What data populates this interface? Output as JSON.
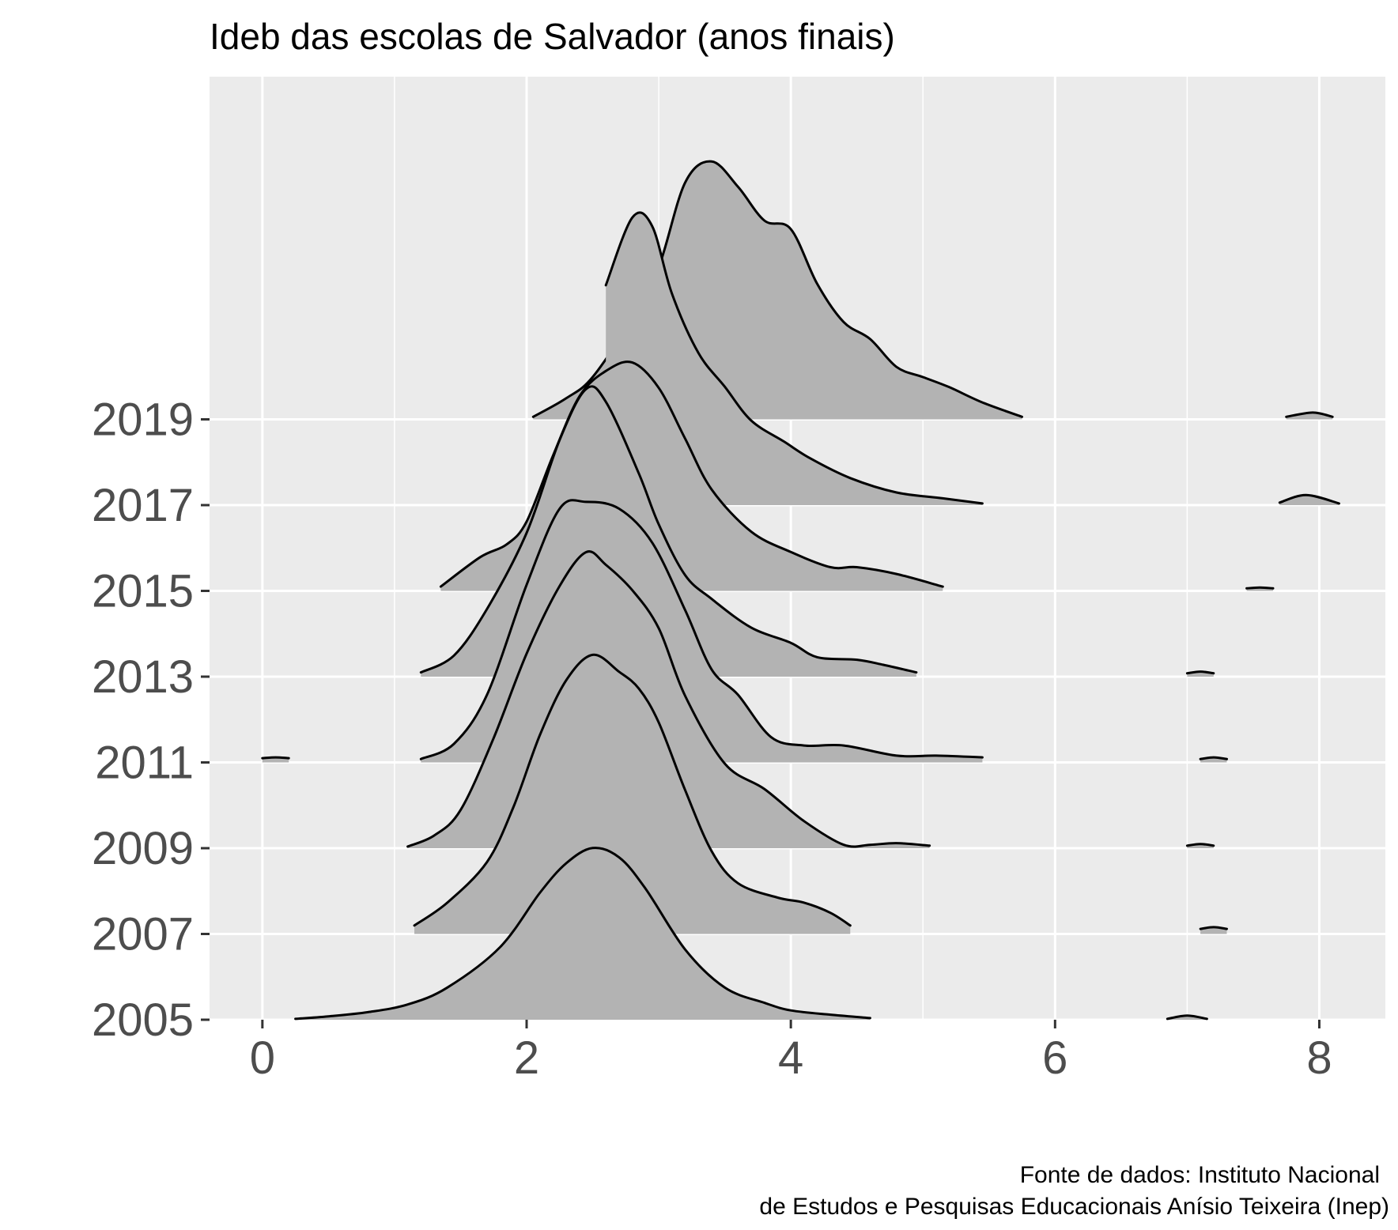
{
  "chart_data": {
    "type": "ridgeline",
    "title": "Ideb das escolas de Salvador (anos finais)",
    "xlabel": "",
    "ylabel": "",
    "xlim": [
      -0.4,
      8.5
    ],
    "x_ticks": [
      "0",
      "2",
      "4",
      "6",
      "8"
    ],
    "categories": [
      "2005",
      "2007",
      "2009",
      "2011",
      "2013",
      "2015",
      "2017",
      "2019"
    ],
    "panel_background": "#ebebeb",
    "gridline_color": "#ffffff",
    "fill_color": "#b3b3b3",
    "line_color": "#000000",
    "grid": true,
    "series": [
      {
        "name": "2005",
        "main": [
          [
            0.25,
            0.01
          ],
          [
            0.5,
            0.04
          ],
          [
            0.8,
            0.09
          ],
          [
            1.1,
            0.18
          ],
          [
            1.4,
            0.38
          ],
          [
            1.8,
            0.86
          ],
          [
            2.1,
            1.5
          ],
          [
            2.3,
            1.85
          ],
          [
            2.5,
            2.03
          ],
          [
            2.7,
            1.92
          ],
          [
            2.9,
            1.55
          ],
          [
            3.2,
            0.83
          ],
          [
            3.5,
            0.38
          ],
          [
            3.8,
            0.2
          ],
          [
            4.0,
            0.11
          ],
          [
            4.3,
            0.06
          ],
          [
            4.6,
            0.02
          ]
        ],
        "outliers": [
          [
            [
              6.85,
              0.01
            ],
            [
              7.0,
              0.05
            ],
            [
              7.15,
              0.01
            ]
          ]
        ]
      },
      {
        "name": "2007",
        "main": [
          [
            1.15,
            0.1
          ],
          [
            1.4,
            0.37
          ],
          [
            1.7,
            0.85
          ],
          [
            1.9,
            1.5
          ],
          [
            2.1,
            2.35
          ],
          [
            2.3,
            3.0
          ],
          [
            2.5,
            3.3
          ],
          [
            2.7,
            3.1
          ],
          [
            2.85,
            2.9
          ],
          [
            3.0,
            2.5
          ],
          [
            3.2,
            1.7
          ],
          [
            3.4,
            0.98
          ],
          [
            3.6,
            0.6
          ],
          [
            3.9,
            0.43
          ],
          [
            4.1,
            0.37
          ],
          [
            4.3,
            0.25
          ],
          [
            4.45,
            0.1
          ]
        ],
        "outliers": [
          [
            [
              7.1,
              0.06
            ],
            [
              7.2,
              0.08
            ],
            [
              7.3,
              0.06
            ]
          ]
        ]
      },
      {
        "name": "2009",
        "main": [
          [
            1.1,
            0.02
          ],
          [
            1.3,
            0.15
          ],
          [
            1.5,
            0.45
          ],
          [
            1.75,
            1.3
          ],
          [
            2.0,
            2.3
          ],
          [
            2.25,
            3.1
          ],
          [
            2.45,
            3.5
          ],
          [
            2.6,
            3.35
          ],
          [
            2.8,
            3.05
          ],
          [
            3.0,
            2.6
          ],
          [
            3.2,
            1.8
          ],
          [
            3.5,
            1.0
          ],
          [
            3.8,
            0.7
          ],
          [
            4.1,
            0.32
          ],
          [
            4.4,
            0.04
          ],
          [
            4.6,
            0.04
          ],
          [
            4.8,
            0.06
          ],
          [
            5.05,
            0.03
          ]
        ],
        "outliers": [
          [
            [
              7.0,
              0.03
            ],
            [
              7.1,
              0.05
            ],
            [
              7.2,
              0.03
            ]
          ]
        ]
      },
      {
        "name": "2011",
        "main": [
          [
            1.2,
            0.04
          ],
          [
            1.45,
            0.22
          ],
          [
            1.7,
            0.8
          ],
          [
            2.0,
            2.1
          ],
          [
            2.25,
            3.0
          ],
          [
            2.45,
            3.08
          ],
          [
            2.7,
            3.0
          ],
          [
            2.95,
            2.6
          ],
          [
            3.2,
            1.8
          ],
          [
            3.4,
            1.1
          ],
          [
            3.6,
            0.8
          ],
          [
            3.85,
            0.3
          ],
          [
            4.1,
            0.2
          ],
          [
            4.4,
            0.2
          ],
          [
            4.8,
            0.08
          ],
          [
            5.1,
            0.08
          ],
          [
            5.45,
            0.06
          ]
        ],
        "outliers": [
          [
            [
              0.0,
              0.05
            ],
            [
              0.1,
              0.06
            ],
            [
              0.2,
              0.05
            ]
          ],
          [
            [
              7.1,
              0.04
            ],
            [
              7.2,
              0.06
            ],
            [
              7.3,
              0.04
            ]
          ]
        ]
      },
      {
        "name": "2013",
        "main": [
          [
            1.2,
            0.05
          ],
          [
            1.45,
            0.25
          ],
          [
            1.7,
            0.8
          ],
          [
            2.0,
            1.7
          ],
          [
            2.25,
            2.8
          ],
          [
            2.45,
            3.4
          ],
          [
            2.6,
            3.25
          ],
          [
            2.85,
            2.4
          ],
          [
            3.0,
            1.8
          ],
          [
            3.2,
            1.2
          ],
          [
            3.4,
            0.92
          ],
          [
            3.7,
            0.58
          ],
          [
            4.0,
            0.4
          ],
          [
            4.2,
            0.23
          ],
          [
            4.5,
            0.2
          ],
          [
            4.7,
            0.14
          ],
          [
            4.95,
            0.05
          ]
        ],
        "outliers": [
          [
            [
              7.0,
              0.04
            ],
            [
              7.1,
              0.06
            ],
            [
              7.2,
              0.04
            ]
          ]
        ]
      },
      {
        "name": "2015",
        "main": [
          [
            1.35,
            0.05
          ],
          [
            1.65,
            0.4
          ],
          [
            1.85,
            0.55
          ],
          [
            2.0,
            0.82
          ],
          [
            2.2,
            1.6
          ],
          [
            2.4,
            2.3
          ],
          [
            2.6,
            2.6
          ],
          [
            2.8,
            2.7
          ],
          [
            3.0,
            2.4
          ],
          [
            3.2,
            1.8
          ],
          [
            3.4,
            1.2
          ],
          [
            3.7,
            0.7
          ],
          [
            4.0,
            0.46
          ],
          [
            4.3,
            0.28
          ],
          [
            4.5,
            0.28
          ],
          [
            4.8,
            0.2
          ],
          [
            5.15,
            0.05
          ]
        ],
        "outliers": [
          [
            [
              7.45,
              0.03
            ],
            [
              7.55,
              0.04
            ],
            [
              7.65,
              0.03
            ]
          ]
        ]
      },
      {
        "name": "2017",
        "main": [
          [
            2.6,
            2.6
          ],
          [
            2.8,
            3.4
          ],
          [
            2.95,
            3.3
          ],
          [
            3.1,
            2.5
          ],
          [
            3.3,
            1.8
          ],
          [
            3.5,
            1.4
          ],
          [
            3.7,
            1.0
          ],
          [
            3.95,
            0.75
          ],
          [
            4.15,
            0.55
          ],
          [
            4.45,
            0.32
          ],
          [
            4.8,
            0.15
          ],
          [
            5.15,
            0.08
          ],
          [
            5.45,
            0.02
          ]
        ],
        "outliers": [
          [
            [
              7.7,
              0.03
            ],
            [
              7.9,
              0.12
            ],
            [
              8.15,
              0.02
            ]
          ]
        ]
      },
      {
        "name": "2019",
        "main": [
          [
            2.05,
            0.03
          ],
          [
            2.3,
            0.25
          ],
          [
            2.5,
            0.5
          ],
          [
            2.8,
            1.2
          ],
          [
            3.0,
            1.8
          ],
          [
            3.2,
            2.8
          ],
          [
            3.4,
            3.05
          ],
          [
            3.6,
            2.75
          ],
          [
            3.8,
            2.35
          ],
          [
            4.0,
            2.25
          ],
          [
            4.2,
            1.6
          ],
          [
            4.4,
            1.15
          ],
          [
            4.6,
            0.95
          ],
          [
            4.8,
            0.62
          ],
          [
            5.0,
            0.5
          ],
          [
            5.2,
            0.38
          ],
          [
            5.45,
            0.2
          ],
          [
            5.75,
            0.03
          ]
        ],
        "outliers": [
          [
            [
              7.75,
              0.03
            ],
            [
              7.95,
              0.08
            ],
            [
              8.1,
              0.03
            ]
          ]
        ]
      }
    ]
  },
  "caption": {
    "line1": "Fonte de dados:  Instituto Nacional",
    "line2": "de Estudos e Pesquisas Educacionais Anísio Teixeira (Inep)"
  }
}
